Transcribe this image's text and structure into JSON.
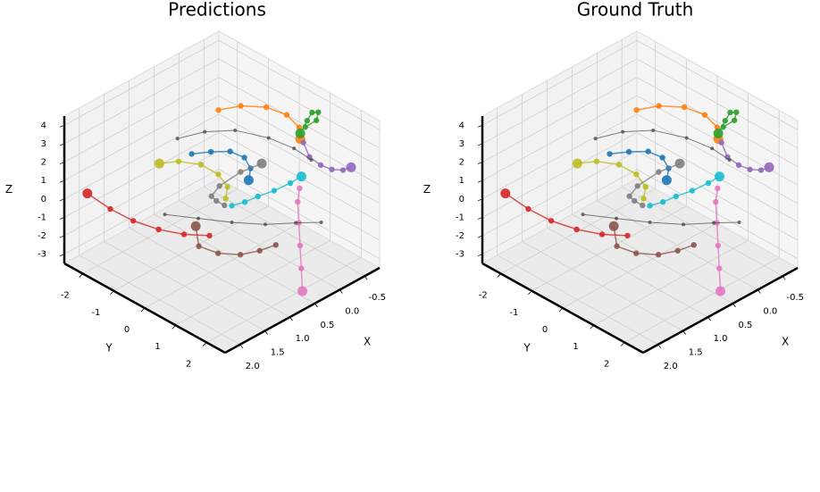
{
  "chart_data": [
    {
      "type": "scatter3d",
      "title": "Predictions",
      "xlabel": "X",
      "ylabel": "Y",
      "zlabel": "Z",
      "xlim": [
        -0.8,
        2.3
      ],
      "ylim": [
        -2.6,
        2.6
      ],
      "zlim": [
        -3.5,
        4.5
      ],
      "xticks": [
        -0.5,
        {
          "value": 0,
          "label": "0.0"
        },
        0.5,
        {
          "value": 1,
          "label": "1.0"
        },
        1.5,
        {
          "value": 2,
          "label": "2.0"
        }
      ],
      "yticks": [
        -2,
        -1,
        0,
        1,
        2
      ],
      "zticks": [
        -3,
        -2,
        -1,
        0,
        1,
        2,
        3,
        4
      ],
      "series": [
        {
          "color": "#d62728",
          "x": [
            1.0,
            1.2,
            1.4,
            1.6,
            1.75,
            1.9
          ],
          "y": [
            0.0,
            -0.5,
            -1.0,
            -1.5,
            -2.0,
            -2.5
          ],
          "z": [
            -1.5,
            -1.6,
            -1.5,
            -1.2,
            -0.8,
            -0.2
          ]
        },
        {
          "color": "#8c564b",
          "x": [
            0.6,
            0.8,
            1.0,
            1.2,
            1.4,
            1.4
          ],
          "y": [
            1.5,
            1.3,
            1.0,
            0.6,
            0.3,
            0.2
          ],
          "z": [
            -1.2,
            -1.4,
            -1.6,
            -1.6,
            -1.2,
            -0.2
          ]
        },
        {
          "color": "#e377c2",
          "x": [
            0.0,
            0.1,
            0.2,
            0.3,
            0.4,
            0.5
          ],
          "y": [
            1.3,
            1.4,
            1.6,
            1.8,
            2.0,
            2.2
          ],
          "z": [
            0.8,
            0.3,
            -0.5,
            -1.4,
            -2.3,
            -3.2
          ]
        },
        {
          "color": "#ff7f0e",
          "x": [
            0.2,
            0.0,
            -0.2,
            -0.3,
            -0.3,
            -0.2
          ],
          "y": [
            -1.0,
            -0.6,
            -0.1,
            0.4,
            0.8,
            1.0
          ],
          "z": [
            3.2,
            3.5,
            3.6,
            3.5,
            3.2,
            2.9
          ]
        },
        {
          "color": "#2ca02c",
          "x": [
            -0.3,
            -0.4,
            -0.5,
            -0.5,
            -0.4,
            -0.2
          ],
          "y": [
            1.0,
            1.2,
            1.1,
            0.9,
            0.9,
            1.0
          ],
          "z": [
            3.4,
            3.8,
            4.0,
            3.8,
            3.5,
            3.2
          ]
        },
        {
          "color": "#9467bd",
          "x": [
            -0.2,
            -0.2,
            -0.3,
            -0.4,
            -0.5,
            -0.6
          ],
          "y": [
            1.1,
            1.3,
            1.5,
            1.7,
            1.9,
            2.0
          ],
          "z": [
            2.8,
            2.2,
            1.8,
            1.6,
            1.6,
            1.7
          ]
        },
        {
          "color": "#1f77b4",
          "x": [
            0.8,
            0.6,
            0.4,
            0.3,
            0.3,
            0.4
          ],
          "y": [
            -0.9,
            -0.6,
            -0.3,
            0.0,
            0.2,
            0.3
          ],
          "z": [
            1.8,
            1.9,
            1.9,
            1.7,
            1.3,
            0.9
          ]
        },
        {
          "color": "#bcbd22",
          "x": [
            0.8,
            0.7,
            0.7,
            0.8,
            1.0,
            1.2
          ],
          "y": [
            0.2,
            0.1,
            -0.2,
            -0.6,
            -1.0,
            -1.3
          ],
          "z": [
            0.4,
            0.8,
            1.2,
            1.5,
            1.6,
            1.5
          ]
        },
        {
          "color": "#7f7f7f",
          "x": [
            0.7,
            0.8,
            0.9,
            0.8,
            0.5,
            0.2
          ],
          "y": [
            0.0,
            -0.1,
            -0.1,
            0.0,
            0.2,
            0.4
          ],
          "z": [
            -0.3,
            0.0,
            0.4,
            0.9,
            1.4,
            1.6
          ]
        },
        {
          "color": "#17becf",
          "x": [
            0.8,
            0.6,
            0.4,
            0.2,
            0.0,
            -0.1
          ],
          "y": [
            0.4,
            0.5,
            0.6,
            0.8,
            1.0,
            1.2
          ],
          "z": [
            0.2,
            0.2,
            0.3,
            0.5,
            0.8,
            1.2
          ]
        },
        {
          "color": "#444444",
          "x": [
            0.9,
            0.6,
            0.3,
            0.0,
            -0.2,
            -0.3
          ],
          "y": [
            -1.2,
            -0.8,
            -0.3,
            0.3,
            0.8,
            1.2
          ],
          "z": [
            2.5,
            2.8,
            2.9,
            2.6,
            2.2,
            1.8
          ]
        },
        {
          "color": "#444444",
          "x": [
            1.4,
            1.1,
            0.8,
            0.5,
            0.2,
            0.0
          ],
          "y": [
            -0.8,
            -0.2,
            0.4,
            1.0,
            1.5,
            2.0
          ],
          "z": [
            -0.5,
            -0.6,
            -0.7,
            -0.7,
            -0.6,
            -0.4
          ]
        }
      ]
    },
    {
      "type": "scatter3d",
      "title": "Ground Truth",
      "xlabel": "X",
      "ylabel": "Y",
      "zlabel": "Z",
      "xlim": [
        -0.8,
        2.3
      ],
      "ylim": [
        -2.6,
        2.6
      ],
      "zlim": [
        -3.5,
        4.5
      ],
      "xticks": [
        -0.5,
        {
          "value": 0,
          "label": "0.0"
        },
        0.5,
        {
          "value": 1,
          "label": "1.0"
        },
        1.5,
        {
          "value": 2,
          "label": "2.0"
        }
      ],
      "yticks": [
        -2,
        -1,
        0,
        1,
        2
      ],
      "zticks": [
        -3,
        -2,
        -1,
        0,
        1,
        2,
        3,
        4
      ],
      "series": [
        {
          "color": "#d62728",
          "x": [
            1.0,
            1.2,
            1.4,
            1.6,
            1.75,
            1.9
          ],
          "y": [
            0.0,
            -0.5,
            -1.0,
            -1.5,
            -2.0,
            -2.5
          ],
          "z": [
            -1.5,
            -1.6,
            -1.5,
            -1.2,
            -0.8,
            -0.2
          ]
        },
        {
          "color": "#8c564b",
          "x": [
            0.6,
            0.8,
            1.0,
            1.2,
            1.4,
            1.4
          ],
          "y": [
            1.5,
            1.3,
            1.0,
            0.6,
            0.3,
            0.2
          ],
          "z": [
            -1.2,
            -1.4,
            -1.6,
            -1.6,
            -1.2,
            -0.2
          ]
        },
        {
          "color": "#e377c2",
          "x": [
            0.0,
            0.1,
            0.2,
            0.3,
            0.4,
            0.5
          ],
          "y": [
            1.3,
            1.4,
            1.6,
            1.8,
            2.0,
            2.2
          ],
          "z": [
            0.8,
            0.3,
            -0.5,
            -1.4,
            -2.3,
            -3.2
          ]
        },
        {
          "color": "#ff7f0e",
          "x": [
            0.2,
            0.0,
            -0.2,
            -0.3,
            -0.3,
            -0.2
          ],
          "y": [
            -1.0,
            -0.6,
            -0.1,
            0.4,
            0.8,
            1.0
          ],
          "z": [
            3.2,
            3.5,
            3.6,
            3.5,
            3.2,
            2.9
          ]
        },
        {
          "color": "#2ca02c",
          "x": [
            -0.3,
            -0.4,
            -0.5,
            -0.5,
            -0.4,
            -0.2
          ],
          "y": [
            1.0,
            1.2,
            1.1,
            0.9,
            0.9,
            1.0
          ],
          "z": [
            3.4,
            3.8,
            4.0,
            3.8,
            3.5,
            3.2
          ]
        },
        {
          "color": "#9467bd",
          "x": [
            -0.2,
            -0.2,
            -0.3,
            -0.4,
            -0.5,
            -0.6
          ],
          "y": [
            1.1,
            1.3,
            1.5,
            1.7,
            1.9,
            2.0
          ],
          "z": [
            2.8,
            2.2,
            1.8,
            1.6,
            1.6,
            1.7
          ]
        },
        {
          "color": "#1f77b4",
          "x": [
            0.8,
            0.6,
            0.4,
            0.3,
            0.3,
            0.4
          ],
          "y": [
            -0.9,
            -0.6,
            -0.3,
            0.0,
            0.2,
            0.3
          ],
          "z": [
            1.8,
            1.9,
            1.9,
            1.7,
            1.3,
            0.9
          ]
        },
        {
          "color": "#bcbd22",
          "x": [
            0.8,
            0.7,
            0.7,
            0.8,
            1.0,
            1.2
          ],
          "y": [
            0.2,
            0.1,
            -0.2,
            -0.6,
            -1.0,
            -1.3
          ],
          "z": [
            0.4,
            0.8,
            1.2,
            1.5,
            1.6,
            1.5
          ]
        },
        {
          "color": "#7f7f7f",
          "x": [
            0.7,
            0.8,
            0.9,
            0.8,
            0.5,
            0.2
          ],
          "y": [
            0.0,
            -0.1,
            -0.1,
            0.0,
            0.2,
            0.4
          ],
          "z": [
            -0.3,
            0.0,
            0.4,
            0.9,
            1.4,
            1.6
          ]
        },
        {
          "color": "#17becf",
          "x": [
            0.8,
            0.6,
            0.4,
            0.2,
            0.0,
            -0.1
          ],
          "y": [
            0.4,
            0.5,
            0.6,
            0.8,
            1.0,
            1.2
          ],
          "z": [
            0.2,
            0.2,
            0.3,
            0.5,
            0.8,
            1.2
          ]
        },
        {
          "color": "#444444",
          "x": [
            0.9,
            0.6,
            0.3,
            0.0,
            -0.2,
            -0.3
          ],
          "y": [
            -1.2,
            -0.8,
            -0.3,
            0.3,
            0.8,
            1.2
          ],
          "z": [
            2.5,
            2.8,
            2.9,
            2.6,
            2.2,
            1.8
          ]
        },
        {
          "color": "#444444",
          "x": [
            1.4,
            1.1,
            0.8,
            0.5,
            0.2,
            0.0
          ],
          "y": [
            -0.8,
            -0.2,
            0.4,
            1.0,
            1.5,
            2.0
          ],
          "z": [
            -0.5,
            -0.6,
            -0.7,
            -0.7,
            -0.6,
            -0.4
          ]
        }
      ]
    }
  ]
}
